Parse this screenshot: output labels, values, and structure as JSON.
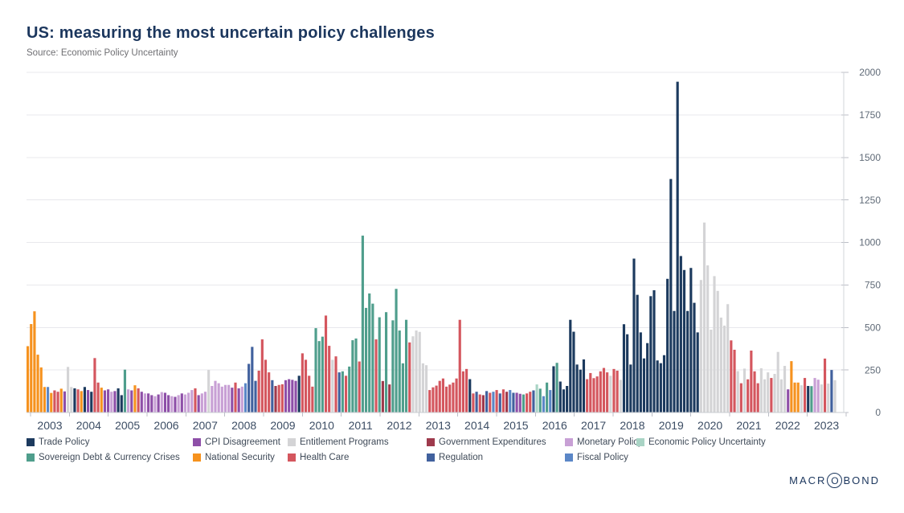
{
  "branding": {
    "pre": "MACR",
    "o": "O",
    "post": "BOND"
  },
  "chart_data": {
    "type": "bar",
    "title": "US: measuring the most uncertain policy challenges",
    "source": "Source: Economic Policy Uncertainty",
    "xlabel": "",
    "ylabel": "",
    "ylim": [
      0,
      2000
    ],
    "yticks": [
      0,
      250,
      500,
      750,
      1000,
      1250,
      1500,
      1750,
      2000
    ],
    "x_axis_years": [
      "2003",
      "2004",
      "2005",
      "2006",
      "2007",
      "2008",
      "2009",
      "2010",
      "2011",
      "2012",
      "2013",
      "2014",
      "2015",
      "2016",
      "2017",
      "2018",
      "2019",
      "2020",
      "2021",
      "2022",
      "2023"
    ],
    "x_unit": "month",
    "grid": true,
    "legend_position": "bottom",
    "categories": {
      "TP": {
        "label": "Trade Policy",
        "color": "#1c3a5e"
      },
      "CPI": {
        "label": "CPI Disagreement",
        "color": "#8e4fa8"
      },
      "EP": {
        "label": "Entitlement Programs",
        "color": "#d4d4d6"
      },
      "GE": {
        "label": "Government Expenditures",
        "color": "#9e3a4c"
      },
      "MP": {
        "label": "Monetary Policy",
        "color": "#c8a0d5"
      },
      "EPU": {
        "label": "Economic Policy Uncertainty",
        "color": "#a9d4c5"
      },
      "SD": {
        "label": "Sovereign Debt & Currency Crises",
        "color": "#4f9e8c"
      },
      "NS": {
        "label": "National Security",
        "color": "#f6921e"
      },
      "HC": {
        "label": "Health Care",
        "color": "#d4565e"
      },
      "RG": {
        "label": "Regulation",
        "color": "#41619e"
      },
      "FP": {
        "label": "Fiscal Policy",
        "color": "#5b87c7"
      }
    },
    "legend_order": [
      "TP",
      "CPI",
      "EP",
      "GE",
      "MP",
      "EPU",
      "SD",
      "NS",
      "HC",
      "RG",
      "FP"
    ],
    "bars": [
      [
        "2003-01",
        390,
        "NS"
      ],
      [
        "2003-02",
        520,
        "NS"
      ],
      [
        "2003-03",
        595,
        "NS"
      ],
      [
        "2003-04",
        340,
        "NS"
      ],
      [
        "2003-05",
        265,
        "NS"
      ],
      [
        "2003-06",
        150,
        "NS"
      ],
      [
        "2003-07",
        150,
        "FP"
      ],
      [
        "2003-08",
        115,
        "NS"
      ],
      [
        "2003-09",
        130,
        "HC"
      ],
      [
        "2003-10",
        122,
        "HC"
      ],
      [
        "2003-11",
        140,
        "NS"
      ],
      [
        "2003-12",
        124,
        "CPI"
      ],
      [
        "2004-01",
        268,
        "EP"
      ],
      [
        "2004-02",
        150,
        "EP"
      ],
      [
        "2004-03",
        142,
        "TP"
      ],
      [
        "2004-04",
        136,
        "HC"
      ],
      [
        "2004-05",
        126,
        "NS"
      ],
      [
        "2004-06",
        150,
        "TP"
      ],
      [
        "2004-07",
        132,
        "CPI"
      ],
      [
        "2004-08",
        122,
        "TP"
      ],
      [
        "2004-09",
        320,
        "HC"
      ],
      [
        "2004-10",
        176,
        "HC"
      ],
      [
        "2004-11",
        146,
        "NS"
      ],
      [
        "2004-12",
        130,
        "CPI"
      ],
      [
        "2005-01",
        136,
        "CPI"
      ],
      [
        "2005-02",
        122,
        "MP"
      ],
      [
        "2005-03",
        126,
        "CPI"
      ],
      [
        "2005-04",
        142,
        "TP"
      ],
      [
        "2005-05",
        102,
        "TP"
      ],
      [
        "2005-06",
        252,
        "SD"
      ],
      [
        "2005-07",
        136,
        "MP"
      ],
      [
        "2005-08",
        130,
        "CPI"
      ],
      [
        "2005-09",
        160,
        "NS"
      ],
      [
        "2005-10",
        142,
        "HC"
      ],
      [
        "2005-11",
        122,
        "CPI"
      ],
      [
        "2005-12",
        112,
        "MP"
      ],
      [
        "2006-01",
        112,
        "CPI"
      ],
      [
        "2006-02",
        102,
        "CPI"
      ],
      [
        "2006-03",
        96,
        "MP"
      ],
      [
        "2006-04",
        106,
        "CPI"
      ],
      [
        "2006-05",
        120,
        "MP"
      ],
      [
        "2006-06",
        116,
        "CPI"
      ],
      [
        "2006-07",
        102,
        "CPI"
      ],
      [
        "2006-08",
        96,
        "MP"
      ],
      [
        "2006-09",
        92,
        "CPI"
      ],
      [
        "2006-10",
        102,
        "MP"
      ],
      [
        "2006-11",
        112,
        "CPI"
      ],
      [
        "2006-12",
        106,
        "MP"
      ],
      [
        "2007-01",
        116,
        "MP"
      ],
      [
        "2007-02",
        132,
        "MP"
      ],
      [
        "2007-03",
        142,
        "HC"
      ],
      [
        "2007-04",
        102,
        "CPI"
      ],
      [
        "2007-05",
        112,
        "MP"
      ],
      [
        "2007-06",
        122,
        "MP"
      ],
      [
        "2007-07",
        250,
        "EP"
      ],
      [
        "2007-08",
        156,
        "MP"
      ],
      [
        "2007-09",
        186,
        "MP"
      ],
      [
        "2007-10",
        172,
        "MP"
      ],
      [
        "2007-11",
        152,
        "MP"
      ],
      [
        "2007-12",
        162,
        "MP"
      ],
      [
        "2008-01",
        162,
        "MP"
      ],
      [
        "2008-02",
        146,
        "CPI"
      ],
      [
        "2008-03",
        176,
        "HC"
      ],
      [
        "2008-04",
        142,
        "CPI"
      ],
      [
        "2008-05",
        152,
        "MP"
      ],
      [
        "2008-06",
        172,
        "FP"
      ],
      [
        "2008-07",
        286,
        "RG"
      ],
      [
        "2008-08",
        386,
        "RG"
      ],
      [
        "2008-09",
        186,
        "RG"
      ],
      [
        "2008-10",
        246,
        "HC"
      ],
      [
        "2008-11",
        430,
        "HC"
      ],
      [
        "2008-12",
        310,
        "HC"
      ],
      [
        "2009-01",
        236,
        "HC"
      ],
      [
        "2009-02",
        190,
        "RG"
      ],
      [
        "2009-03",
        156,
        "GE"
      ],
      [
        "2009-04",
        162,
        "HC"
      ],
      [
        "2009-05",
        166,
        "HC"
      ],
      [
        "2009-06",
        190,
        "CPI"
      ],
      [
        "2009-07",
        196,
        "CPI"
      ],
      [
        "2009-08",
        192,
        "CPI"
      ],
      [
        "2009-09",
        186,
        "CPI"
      ],
      [
        "2009-10",
        216,
        "TP"
      ],
      [
        "2009-11",
        348,
        "HC"
      ],
      [
        "2009-12",
        310,
        "HC"
      ],
      [
        "2010-01",
        216,
        "HC"
      ],
      [
        "2010-02",
        152,
        "HC"
      ],
      [
        "2010-03",
        496,
        "SD"
      ],
      [
        "2010-04",
        420,
        "SD"
      ],
      [
        "2010-05",
        446,
        "SD"
      ],
      [
        "2010-06",
        570,
        "HC"
      ],
      [
        "2010-07",
        392,
        "HC"
      ],
      [
        "2010-08",
        310,
        "EP"
      ],
      [
        "2010-09",
        330,
        "HC"
      ],
      [
        "2010-10",
        236,
        "RG"
      ],
      [
        "2010-11",
        242,
        "SD"
      ],
      [
        "2010-12",
        216,
        "HC"
      ],
      [
        "2011-01",
        270,
        "SD"
      ],
      [
        "2011-02",
        425,
        "SD"
      ],
      [
        "2011-03",
        435,
        "SD"
      ],
      [
        "2011-04",
        300,
        "HC"
      ],
      [
        "2011-05",
        1040,
        "SD"
      ],
      [
        "2011-06",
        615,
        "SD"
      ],
      [
        "2011-07",
        700,
        "SD"
      ],
      [
        "2011-08",
        640,
        "SD"
      ],
      [
        "2011-09",
        430,
        "HC"
      ],
      [
        "2011-10",
        560,
        "SD"
      ],
      [
        "2011-11",
        185,
        "GE"
      ],
      [
        "2011-12",
        590,
        "SD"
      ],
      [
        "2012-01",
        165,
        "GE"
      ],
      [
        "2012-02",
        542,
        "SD"
      ],
      [
        "2012-03",
        727,
        "SD"
      ],
      [
        "2012-04",
        482,
        "SD"
      ],
      [
        "2012-05",
        289,
        "SD"
      ],
      [
        "2012-06",
        545,
        "SD"
      ],
      [
        "2012-07",
        412,
        "HC"
      ],
      [
        "2012-08",
        448,
        "EP"
      ],
      [
        "2012-09",
        482,
        "EP"
      ],
      [
        "2012-10",
        474,
        "EP"
      ],
      [
        "2012-11",
        289,
        "EP"
      ],
      [
        "2012-12",
        278,
        "EP"
      ],
      [
        "2013-01",
        132,
        "HC"
      ],
      [
        "2013-02",
        148,
        "HC"
      ],
      [
        "2013-03",
        158,
        "HC"
      ],
      [
        "2013-04",
        186,
        "HC"
      ],
      [
        "2013-05",
        200,
        "HC"
      ],
      [
        "2013-06",
        152,
        "HC"
      ],
      [
        "2013-07",
        164,
        "HC"
      ],
      [
        "2013-08",
        176,
        "HC"
      ],
      [
        "2013-09",
        200,
        "HC"
      ],
      [
        "2013-10",
        545,
        "HC"
      ],
      [
        "2013-11",
        242,
        "HC"
      ],
      [
        "2013-12",
        256,
        "HC"
      ],
      [
        "2014-01",
        196,
        "TP"
      ],
      [
        "2014-02",
        112,
        "HC"
      ],
      [
        "2014-03",
        122,
        "RG"
      ],
      [
        "2014-04",
        106,
        "HC"
      ],
      [
        "2014-05",
        102,
        "GE"
      ],
      [
        "2014-06",
        126,
        "RG"
      ],
      [
        "2014-07",
        116,
        "HC"
      ],
      [
        "2014-08",
        122,
        "FP"
      ],
      [
        "2014-09",
        132,
        "HC"
      ],
      [
        "2014-10",
        112,
        "RG"
      ],
      [
        "2014-11",
        136,
        "HC"
      ],
      [
        "2014-12",
        122,
        "GE"
      ],
      [
        "2015-01",
        132,
        "FP"
      ],
      [
        "2015-02",
        116,
        "RG"
      ],
      [
        "2015-03",
        116,
        "CPI"
      ],
      [
        "2015-04",
        110,
        "CPI"
      ],
      [
        "2015-05",
        106,
        "SD"
      ],
      [
        "2015-06",
        112,
        "HC"
      ],
      [
        "2015-07",
        122,
        "HC"
      ],
      [
        "2015-08",
        130,
        "RG"
      ],
      [
        "2015-09",
        165,
        "EPU"
      ],
      [
        "2015-10",
        140,
        "SD"
      ],
      [
        "2015-11",
        96,
        "FP"
      ],
      [
        "2015-12",
        176,
        "SD"
      ],
      [
        "2016-01",
        132,
        "FP"
      ],
      [
        "2016-02",
        272,
        "TP"
      ],
      [
        "2016-03",
        292,
        "SD"
      ],
      [
        "2016-04",
        182,
        "TP"
      ],
      [
        "2016-05",
        136,
        "TP"
      ],
      [
        "2016-06",
        156,
        "TP"
      ],
      [
        "2016-07",
        545,
        "TP"
      ],
      [
        "2016-08",
        475,
        "TP"
      ],
      [
        "2016-09",
        282,
        "TP"
      ],
      [
        "2016-10",
        252,
        "TP"
      ],
      [
        "2016-11",
        312,
        "TP"
      ],
      [
        "2016-12",
        196,
        "HC"
      ],
      [
        "2017-01",
        232,
        "HC"
      ],
      [
        "2017-02",
        202,
        "HC"
      ],
      [
        "2017-03",
        212,
        "HC"
      ],
      [
        "2017-04",
        242,
        "HC"
      ],
      [
        "2017-05",
        262,
        "HC"
      ],
      [
        "2017-06",
        236,
        "HC"
      ],
      [
        "2017-07",
        216,
        "EP"
      ],
      [
        "2017-08",
        256,
        "HC"
      ],
      [
        "2017-09",
        246,
        "HC"
      ],
      [
        "2017-10",
        192,
        "EP"
      ],
      [
        "2017-11",
        519,
        "TP"
      ],
      [
        "2017-12",
        460,
        "TP"
      ],
      [
        "2018-01",
        282,
        "TP"
      ],
      [
        "2018-02",
        905,
        "TP"
      ],
      [
        "2018-03",
        692,
        "TP"
      ],
      [
        "2018-04",
        471,
        "TP"
      ],
      [
        "2018-05",
        318,
        "TP"
      ],
      [
        "2018-06",
        408,
        "TP"
      ],
      [
        "2018-07",
        684,
        "TP"
      ],
      [
        "2018-08",
        719,
        "TP"
      ],
      [
        "2018-09",
        306,
        "TP"
      ],
      [
        "2018-10",
        290,
        "TP"
      ],
      [
        "2018-11",
        337,
        "TP"
      ],
      [
        "2018-12",
        786,
        "TP"
      ],
      [
        "2019-01",
        1373,
        "TP"
      ],
      [
        "2019-02",
        597,
        "TP"
      ],
      [
        "2019-03",
        1945,
        "TP"
      ],
      [
        "2019-04",
        920,
        "TP"
      ],
      [
        "2019-05",
        838,
        "TP"
      ],
      [
        "2019-06",
        597,
        "TP"
      ],
      [
        "2019-07",
        850,
        "TP"
      ],
      [
        "2019-08",
        645,
        "TP"
      ],
      [
        "2019-09",
        471,
        "TP"
      ],
      [
        "2019-10",
        779,
        "EP"
      ],
      [
        "2019-11",
        1117,
        "EP"
      ],
      [
        "2019-12",
        865,
        "EP"
      ],
      [
        "2020-01",
        487,
        "EP"
      ],
      [
        "2020-02",
        802,
        "EP"
      ],
      [
        "2020-03",
        715,
        "EP"
      ],
      [
        "2020-04",
        558,
        "EP"
      ],
      [
        "2020-05",
        511,
        "EP"
      ],
      [
        "2020-06",
        637,
        "EP"
      ],
      [
        "2020-07",
        424,
        "HC"
      ],
      [
        "2020-08",
        369,
        "HC"
      ],
      [
        "2020-09",
        243,
        "EP"
      ],
      [
        "2020-10",
        172,
        "HC"
      ],
      [
        "2020-11",
        258,
        "EP"
      ],
      [
        "2020-12",
        195,
        "HC"
      ],
      [
        "2021-01",
        364,
        "HC"
      ],
      [
        "2021-02",
        242,
        "HC"
      ],
      [
        "2021-03",
        172,
        "HC"
      ],
      [
        "2021-04",
        260,
        "EP"
      ],
      [
        "2021-05",
        195,
        "EP"
      ],
      [
        "2021-06",
        236,
        "EP"
      ],
      [
        "2021-07",
        203,
        "HC"
      ],
      [
        "2021-08",
        227,
        "EP"
      ],
      [
        "2021-09",
        356,
        "EP"
      ],
      [
        "2021-10",
        195,
        "EP"
      ],
      [
        "2021-11",
        274,
        "EP"
      ],
      [
        "2021-12",
        136,
        "CPI"
      ],
      [
        "2022-01",
        302,
        "NS"
      ],
      [
        "2022-02",
        176,
        "NS"
      ],
      [
        "2022-03",
        176,
        "NS"
      ],
      [
        "2022-04",
        160,
        "EP"
      ],
      [
        "2022-05",
        203,
        "HC"
      ],
      [
        "2022-06",
        156,
        "TP"
      ],
      [
        "2022-07",
        155,
        "SD"
      ],
      [
        "2022-08",
        203,
        "MP"
      ],
      [
        "2022-09",
        193,
        "MP"
      ],
      [
        "2022-10",
        165,
        "EP"
      ],
      [
        "2022-11",
        317,
        "HC"
      ],
      [
        "2022-12",
        170,
        "EP"
      ],
      [
        "2023-01",
        250,
        "RG"
      ],
      [
        "2023-02",
        190,
        "EP"
      ]
    ]
  }
}
